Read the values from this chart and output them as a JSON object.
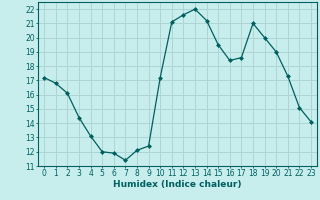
{
  "x": [
    0,
    1,
    2,
    3,
    4,
    5,
    6,
    7,
    8,
    9,
    10,
    11,
    12,
    13,
    14,
    15,
    16,
    17,
    18,
    19,
    20,
    21,
    22,
    23
  ],
  "y": [
    17.2,
    16.8,
    16.1,
    14.4,
    13.1,
    12.0,
    11.9,
    11.4,
    12.1,
    12.4,
    17.2,
    21.1,
    21.6,
    22.0,
    21.2,
    19.5,
    18.4,
    18.6,
    21.0,
    20.0,
    19.0,
    17.3,
    15.1,
    14.1
  ],
  "line_color": "#006060",
  "marker": "D",
  "marker_size": 2.0,
  "bg_color": "#c8eded",
  "grid_color": "#aed4d4",
  "xlabel": "Humidex (Indice chaleur)",
  "ylim": [
    11,
    22.5
  ],
  "xlim": [
    -0.5,
    23.5
  ],
  "yticks": [
    11,
    12,
    13,
    14,
    15,
    16,
    17,
    18,
    19,
    20,
    21,
    22
  ],
  "xticks": [
    0,
    1,
    2,
    3,
    4,
    5,
    6,
    7,
    8,
    9,
    10,
    11,
    12,
    13,
    14,
    15,
    16,
    17,
    18,
    19,
    20,
    21,
    22,
    23
  ]
}
